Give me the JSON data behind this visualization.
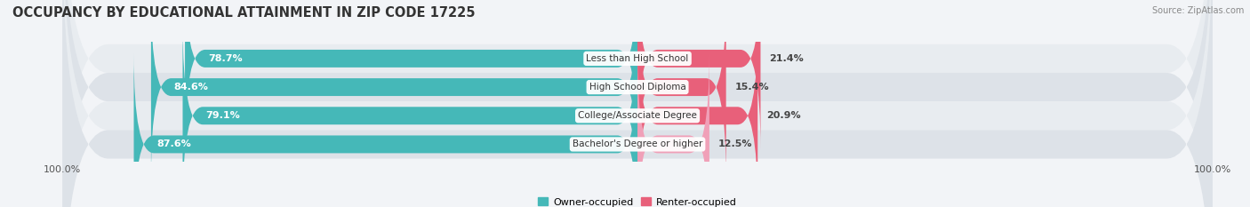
{
  "title": "OCCUPANCY BY EDUCATIONAL ATTAINMENT IN ZIP CODE 17225",
  "source": "Source: ZipAtlas.com",
  "categories": [
    "Less than High School",
    "High School Diploma",
    "College/Associate Degree",
    "Bachelor's Degree or higher"
  ],
  "owner_pct": [
    78.7,
    84.6,
    79.1,
    87.6
  ],
  "renter_pct": [
    21.4,
    15.4,
    20.9,
    12.5
  ],
  "owner_color": "#45B8B8",
  "renter_color_bright": "#E8607A",
  "renter_color_light": "#F0A0B8",
  "bg_color": "#E8ECF0",
  "row_bg_color": "#E0E5EA",
  "title_fontsize": 10.5,
  "label_fontsize": 8,
  "tick_fontsize": 8,
  "legend_fontsize": 8,
  "source_fontsize": 7,
  "figsize": [
    14.06,
    2.33
  ],
  "dpi": 100,
  "xlim": 100,
  "bar_height": 0.62
}
